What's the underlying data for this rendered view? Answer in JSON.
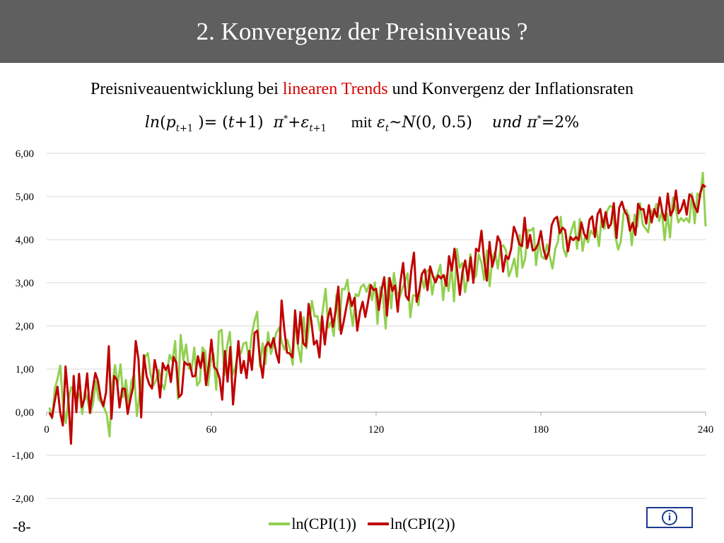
{
  "header": {
    "title": "2. Konvergenz der Preisniveaus ?"
  },
  "subtitle": {
    "before": "Preisniveauentwicklung bei ",
    "highlight": "linearen Trends",
    "after": " und Konvergenz der Inflationsraten"
  },
  "formula": {
    "mit": "mit",
    "und": "und"
  },
  "footer": {
    "page_number": "-8-",
    "info_icon": "info-icon"
  },
  "colors": {
    "title_bar": "#5f5f5f",
    "highlight": "#d40000",
    "series1": "#92d050",
    "series2": "#c00000",
    "info": "#1a3a8c"
  },
  "chart_data": {
    "type": "line",
    "xlim": [
      0,
      240
    ],
    "ylim": [
      -2,
      6
    ],
    "x_ticks": [
      "0",
      "60",
      "120",
      "180",
      "240"
    ],
    "y_ticks": [
      "6,00",
      "5,00",
      "4,00",
      "3,00",
      "2,00",
      "1,00",
      "0,00",
      "-1,00",
      "-2,00"
    ],
    "grid": true,
    "legend_position": "bottom",
    "series": [
      {
        "name": "ln(CPI(1))",
        "color": "#92d050",
        "values": [
          0.11,
          -0.15,
          0.55,
          0.78,
          1.08,
          0.14,
          -0.25,
          0.31,
          0.58,
          0.58,
          0.31,
          0.43,
          -0.04,
          0.49,
          0.27,
          -0.03,
          0.21,
          0.72,
          0.3,
          0.21,
          0.11,
          -0.06,
          -0.56,
          0.64,
          1.09,
          0.64,
          1.11,
          0.35,
          0.75,
          0.14,
          0.72,
          0.88,
          -0.09,
          0.44,
          0.93,
          1.28,
          1.37,
          0.88,
          0.62,
          0.74,
          0.98,
          0.67,
          0.53,
          0.93,
          1.33,
          1.19,
          1.65,
          0.31,
          1.79,
          1.21,
          1.57,
          1.02,
          0.99,
          1.5,
          0.62,
          0.71,
          1.5,
          1.4,
          0.62,
          1.17,
          1.36,
          0.52,
          1.87,
          1.91,
          0.86,
          1.54,
          1.86,
          0.87,
          1.03,
          1.37,
          1.36,
          1.59,
          1.62,
          1.19,
          1.78,
          2.11,
          2.33,
          1.06,
          1.6,
          1.12,
          1.85,
          1.35,
          1.57,
          1.84,
          1.96,
          1.62,
          1.45,
          1.68,
          1.46,
          1.1,
          2.19,
          1.51,
          1.16,
          2.2,
          1.48,
          2.06,
          2.58,
          2.22,
          2.23,
          1.89,
          2.38,
          2.86,
          1.96,
          2.09,
          1.77,
          2.73,
          1.91,
          2.86,
          2.85,
          3.07,
          2.44,
          2.0,
          2.74,
          2.69,
          2.91,
          2.96,
          2.79,
          2.96,
          2.6,
          3.01,
          2.05,
          2.9,
          2.69,
          1.94,
          3.11,
          2.41,
          3.23,
          2.81,
          2.64,
          2.85,
          3.01,
          3.22,
          2.2,
          2.71,
          2.71,
          2.48,
          3.16,
          2.88,
          3.26,
          3.32,
          2.73,
          3.09,
          3.2,
          3.42,
          2.6,
          3.15,
          2.81,
          3.39,
          2.57,
          3.78,
          3.35,
          3.46,
          2.78,
          3.14,
          3.66,
          3.09,
          3.16,
          3.66,
          3.47,
          3.07,
          3.75,
          2.92,
          3.57,
          3.72,
          3.33,
          3.83,
          3.87,
          3.75,
          3.15,
          3.32,
          3.56,
          3.14,
          4.11,
          3.35,
          3.57,
          4.23,
          4.21,
          4.27,
          3.41,
          3.96,
          3.61,
          3.56,
          3.89,
          3.61,
          3.33,
          3.78,
          3.96,
          4.53,
          3.8,
          3.61,
          3.97,
          4.23,
          4.42,
          3.79,
          4.48,
          3.74,
          4.1,
          3.94,
          4.21,
          4.12,
          4.27,
          3.85,
          4.54,
          4.25,
          4.67,
          4.78,
          4.76,
          4.08,
          3.77,
          3.96,
          4.61,
          4.69,
          4.53,
          3.87,
          4.58,
          4.3,
          4.85,
          4.35,
          4.26,
          4.17,
          4.68,
          4.55,
          4.83,
          4.43,
          4.66,
          3.99,
          4.6,
          4.05,
          4.97,
          4.76,
          4.4,
          4.5,
          4.43,
          4.5,
          4.4,
          5.07,
          4.38,
          5.07,
          4.99,
          5.55,
          4.31
        ]
      },
      {
        "name": "ln(CPI(2))",
        "color": "#c00000",
        "values": [
          -0.01,
          -0.12,
          0.27,
          0.59,
          -0.0,
          -0.31,
          1.06,
          0.31,
          -0.73,
          0.84,
          -0.0,
          0.89,
          0.12,
          0.31,
          0.9,
          -0.01,
          0.5,
          0.91,
          0.72,
          0.33,
          0.14,
          0.46,
          1.53,
          -0.15,
          0.84,
          0.75,
          0.11,
          0.55,
          0.54,
          -0.04,
          0.3,
          0.58,
          1.65,
          1.23,
          -0.12,
          1.32,
          0.84,
          0.65,
          0.55,
          1.21,
          0.91,
          0.34,
          1.14,
          0.98,
          1.09,
          0.7,
          1.28,
          1.15,
          0.35,
          0.42,
          1.17,
          1.1,
          1.12,
          0.83,
          0.84,
          1.3,
          1.03,
          1.38,
          0.63,
          1.07,
          1.68,
          1.05,
          0.98,
          0.79,
          0.29,
          1.42,
          0.71,
          1.51,
          0.18,
          0.91,
          1.65,
          0.91,
          1.19,
          0.79,
          1.42,
          0.98,
          1.84,
          1.89,
          1.21,
          0.8,
          1.51,
          1.62,
          1.5,
          1.72,
          1.37,
          1.15,
          2.59,
          1.93,
          1.38,
          1.36,
          1.27,
          2.36,
          1.59,
          2.32,
          1.6,
          1.53,
          2.51,
          2.11,
          1.57,
          1.66,
          1.27,
          2.22,
          1.57,
          2.14,
          2.41,
          1.98,
          2.35,
          2.91,
          1.82,
          2.11,
          2.45,
          2.76,
          2.46,
          2.65,
          1.89,
          2.32,
          2.56,
          2.21,
          2.55,
          2.95,
          2.83,
          2.86,
          2.37,
          2.82,
          3.13,
          2.24,
          3.11,
          2.81,
          2.94,
          2.33,
          3.04,
          3.46,
          2.7,
          2.6,
          3.29,
          3.7,
          2.56,
          2.82,
          3.21,
          3.31,
          2.83,
          3.38,
          3.16,
          3.01,
          3.17,
          3.1,
          3.18,
          2.93,
          3.62,
          3.28,
          3.79,
          3.28,
          2.72,
          3.26,
          3.52,
          3.05,
          3.59,
          3.0,
          3.79,
          3.73,
          4.21,
          3.52,
          3.05,
          3.95,
          3.37,
          3.63,
          4.08,
          3.94,
          3.26,
          3.63,
          3.55,
          3.79,
          4.3,
          4.14,
          3.9,
          3.85,
          4.51,
          3.81,
          4.11,
          3.75,
          3.78,
          3.91,
          4.2,
          3.77,
          3.55,
          3.74,
          4.34,
          4.48,
          4.53,
          4.15,
          4.28,
          4.22,
          3.73,
          4.06,
          3.99,
          4.06,
          3.99,
          4.4,
          4.14,
          4.02,
          4.46,
          4.54,
          4.06,
          4.59,
          4.71,
          4.29,
          4.64,
          4.27,
          4.37,
          4.85,
          4.04,
          4.74,
          4.88,
          4.66,
          4.56,
          4.21,
          4.39,
          4.11,
          4.83,
          4.7,
          4.71,
          4.37,
          4.8,
          4.4,
          4.71,
          4.53,
          4.98,
          4.63,
          4.45,
          5.07,
          4.56,
          4.69,
          5.14,
          4.61,
          4.71,
          4.92,
          4.58,
          5.05,
          4.99,
          4.76,
          4.64,
          5.08,
          5.27,
          5.22
        ]
      }
    ]
  }
}
